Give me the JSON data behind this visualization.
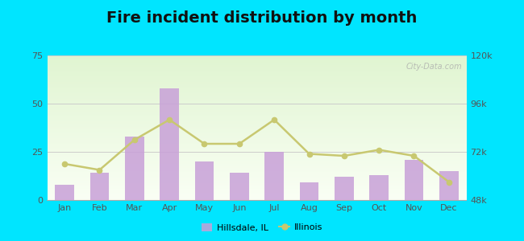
{
  "months": [
    "Jan",
    "Feb",
    "Mar",
    "Apr",
    "May",
    "Jun",
    "Jul",
    "Aug",
    "Sep",
    "Oct",
    "Nov",
    "Dec"
  ],
  "hillsdale_values": [
    8,
    14,
    33,
    58,
    20,
    14,
    25,
    9,
    12,
    13,
    21,
    15
  ],
  "illinois_values": [
    66000,
    63000,
    78000,
    88000,
    76000,
    76000,
    88000,
    71000,
    70000,
    73000,
    70000,
    57000
  ],
  "bar_color": "#c8a0d8",
  "line_color": "#c8c870",
  "line_marker": "o",
  "title": "Fire incident distribution by month",
  "title_fontsize": 14,
  "left_ylim": [
    0,
    75
  ],
  "right_ylim": [
    48000,
    120000
  ],
  "left_yticks": [
    0,
    25,
    50,
    75
  ],
  "right_yticks": [
    48000,
    72000,
    96000,
    120000
  ],
  "right_yticklabels": [
    "48k",
    "72k",
    "96k",
    "120k"
  ],
  "outer_bg": "#00e5ff",
  "watermark": "City-Data.com",
  "legend_hillsdale": "Hillsdale, IL",
  "legend_illinois": "Illinois"
}
